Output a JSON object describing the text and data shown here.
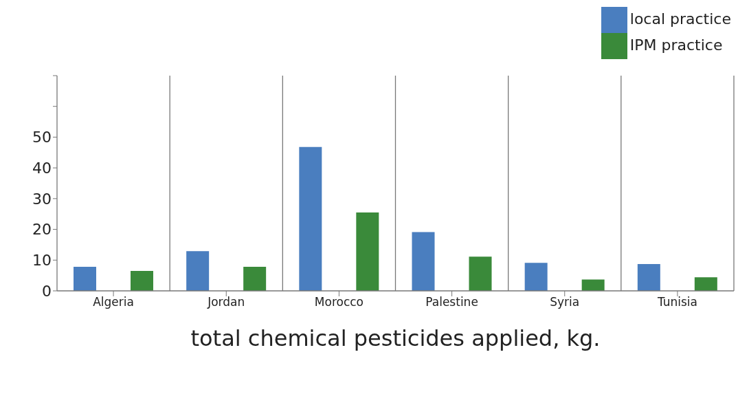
{
  "chart_data": {
    "type": "bar",
    "xlabel": "total chemical pesticides applied, kg.",
    "categories": [
      "Algeria",
      "Jordan",
      "Morocco",
      "Palestine",
      "Syria",
      "Tunisia"
    ],
    "series": [
      {
        "name": "local practice",
        "color": "#4a7ebf",
        "values": [
          7.8,
          12.9,
          46.8,
          19.1,
          9.1,
          8.7
        ]
      },
      {
        "name": "IPM practice",
        "color": "#3a8a3a",
        "values": [
          6.5,
          7.8,
          25.5,
          11.1,
          3.7,
          4.4
        ]
      }
    ],
    "ylim": [
      0,
      70
    ],
    "yticks": [
      0,
      10,
      20,
      30,
      40,
      50,
      {
        "value": 60,
        "label": null
      },
      {
        "value": 70,
        "label": null
      }
    ],
    "grid": "x",
    "legend": "top right"
  }
}
